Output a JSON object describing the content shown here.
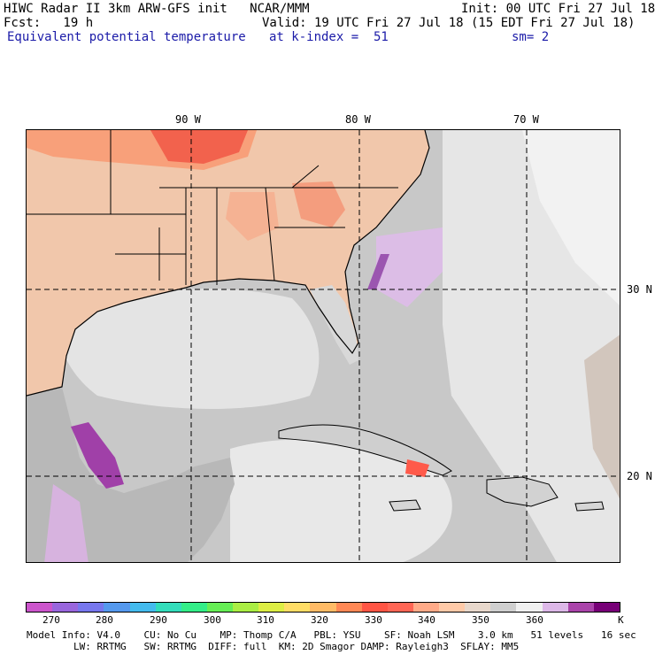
{
  "header": {
    "line1_left": "HIWC Radar II 3km ARW-GFS init   NCAR/MMM",
    "line1_right": "Init: 00 UTC Fri 27 Jul 18",
    "line2_left": "Fcst:   19 h",
    "line2_right": "Valid: 19 UTC Fri 27 Jul 18 (15 EDT Fri 27 Jul 18)",
    "field_name": "Equivalent potential temperature",
    "level": "at k-index =  51",
    "smoothing": "sm= 2"
  },
  "map": {
    "lon_labels": [
      {
        "text": "90 W",
        "lon": -90
      },
      {
        "text": "80 W",
        "lon": -80
      },
      {
        "text": "70 W",
        "lon": -70
      }
    ],
    "lat_labels": [
      {
        "text": "30 N",
        "lat": 30
      },
      {
        "text": "20 N",
        "lat": 20
      }
    ]
  },
  "colorbar": {
    "colors": [
      "#cc55cc",
      "#9966dd",
      "#7777ee",
      "#5599ee",
      "#44bbee",
      "#33ddbb",
      "#33ee88",
      "#66ee55",
      "#aaee44",
      "#ddee44",
      "#ffdd66",
      "#ffbb66",
      "#ff8855",
      "#ff5544",
      "#ff6655",
      "#ffaa88",
      "#ffcaa8",
      "#e8d8cc",
      "#cfcfcf",
      "#f0f0f0",
      "#ddb8e8",
      "#aa44aa",
      "#770077"
    ],
    "labels": [
      "270",
      "280",
      "290",
      "300",
      "310",
      "320",
      "330",
      "340",
      "350",
      "360",
      "K"
    ]
  },
  "footer": {
    "line1": "Model Info: V4.0    CU: No Cu    MP: Thomp C/A   PBL: YSU    SF: Noah LSM    3.0 km   51 levels   16 sec",
    "line2": "        LW: RRTMG   SW: RRTMG  DIFF: full  KM: 2D Smagor DAMP: Rayleigh3  SFLAY: MM5"
  }
}
